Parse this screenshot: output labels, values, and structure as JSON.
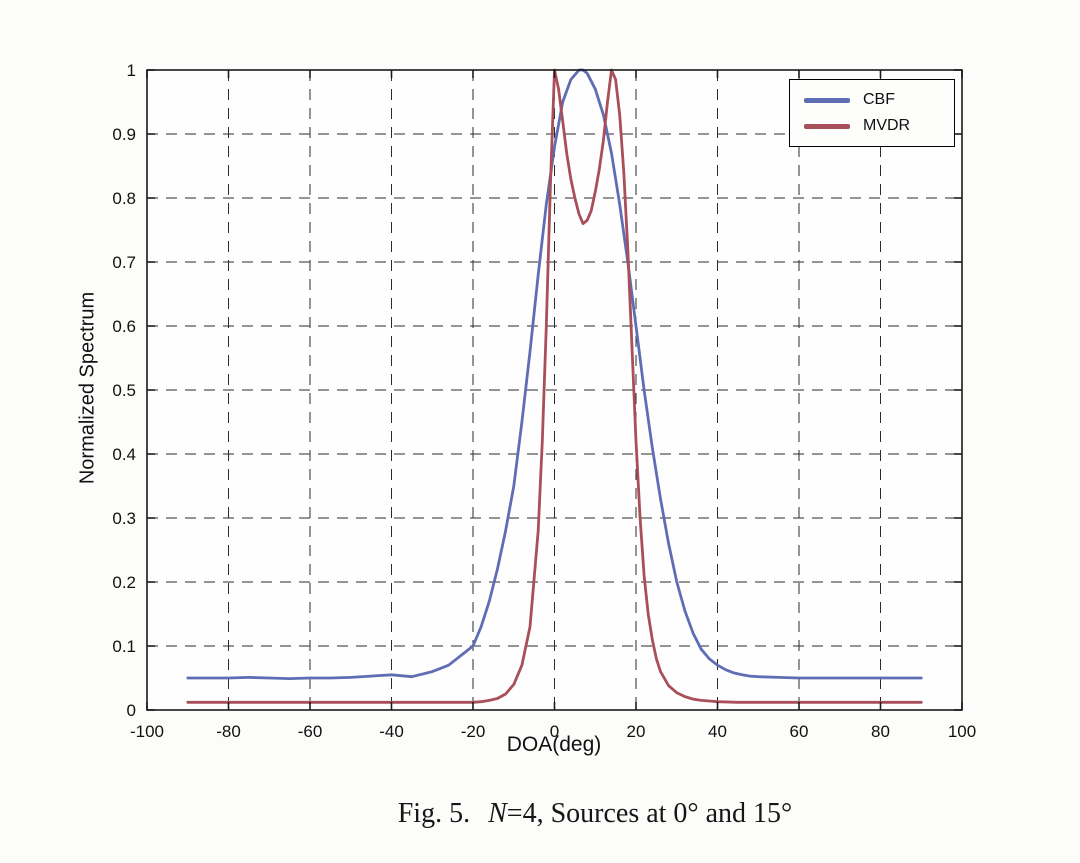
{
  "figure": {
    "caption_fig": "Fig. 5.",
    "caption_n": "N",
    "caption_rest": "=4, Sources at 0° and 15°"
  },
  "chart_data": {
    "type": "line",
    "title": "",
    "xlabel": "DOA(deg)",
    "ylabel": "Normalized Spectrum",
    "xlim": [
      -100,
      100
    ],
    "ylim": [
      0,
      1
    ],
    "grid": "dashed",
    "legend_position": "top-right",
    "xticks": [
      -100,
      -80,
      -60,
      -40,
      -20,
      0,
      20,
      40,
      60,
      80,
      100
    ],
    "xtick_labels": [
      "-100",
      "-80",
      "-60",
      "-40",
      "-20",
      "0",
      "20",
      "40",
      "60",
      "80",
      "100"
    ],
    "yticks": [
      0,
      0.1,
      0.2,
      0.3,
      0.4,
      0.5,
      0.6,
      0.7,
      0.8,
      0.9,
      1
    ],
    "ytick_labels": [
      "0",
      "0.1",
      "0.2",
      "0.3",
      "0.4",
      "0.5",
      "0.6",
      "0.7",
      "0.8",
      "0.9",
      "1"
    ],
    "series": [
      {
        "name": "CBF",
        "color": "#5f6db5",
        "x": [
          -90,
          -85,
          -80,
          -75,
          -70,
          -65,
          -60,
          -55,
          -50,
          -45,
          -40,
          -35,
          -30,
          -28,
          -26,
          -24,
          -22,
          -20,
          -18,
          -16,
          -14,
          -12,
          -10,
          -8,
          -6,
          -4,
          -2,
          0,
          2,
          4,
          6,
          7,
          8,
          10,
          12,
          14,
          16,
          18,
          20,
          22,
          24,
          26,
          28,
          30,
          32,
          34,
          36,
          38,
          40,
          42,
          44,
          46,
          48,
          50,
          55,
          60,
          65,
          70,
          75,
          80,
          85,
          90
        ],
        "y": [
          0.05,
          0.05,
          0.05,
          0.051,
          0.05,
          0.049,
          0.05,
          0.05,
          0.051,
          0.053,
          0.055,
          0.052,
          0.06,
          0.065,
          0.07,
          0.08,
          0.09,
          0.1,
          0.13,
          0.17,
          0.22,
          0.28,
          0.35,
          0.45,
          0.56,
          0.68,
          0.79,
          0.88,
          0.95,
          0.985,
          1.0,
          1.0,
          0.995,
          0.97,
          0.93,
          0.87,
          0.79,
          0.7,
          0.6,
          0.5,
          0.41,
          0.33,
          0.26,
          0.2,
          0.155,
          0.12,
          0.095,
          0.08,
          0.07,
          0.063,
          0.058,
          0.055,
          0.053,
          0.052,
          0.051,
          0.05,
          0.05,
          0.05,
          0.05,
          0.05,
          0.05,
          0.05
        ]
      },
      {
        "name": "MVDR",
        "color": "#a84f59",
        "x": [
          -90,
          -85,
          -80,
          -75,
          -70,
          -65,
          -60,
          -55,
          -50,
          -45,
          -40,
          -35,
          -30,
          -25,
          -20,
          -18,
          -16,
          -14,
          -12,
          -10,
          -8,
          -6,
          -4,
          -3,
          -2,
          -1,
          0,
          1,
          2,
          3,
          4,
          5,
          6,
          7,
          8,
          9,
          10,
          11,
          12,
          13,
          14,
          15,
          16,
          17,
          18,
          19,
          20,
          21,
          22,
          23,
          24,
          25,
          26,
          28,
          30,
          32,
          34,
          36,
          38,
          40,
          45,
          50,
          55,
          60,
          65,
          70,
          75,
          80,
          85,
          90
        ],
        "y": [
          0.012,
          0.012,
          0.012,
          0.012,
          0.012,
          0.012,
          0.012,
          0.012,
          0.012,
          0.012,
          0.012,
          0.012,
          0.012,
          0.012,
          0.012,
          0.013,
          0.015,
          0.018,
          0.025,
          0.04,
          0.07,
          0.13,
          0.28,
          0.42,
          0.6,
          0.82,
          1.0,
          0.97,
          0.92,
          0.87,
          0.83,
          0.8,
          0.775,
          0.76,
          0.765,
          0.78,
          0.81,
          0.845,
          0.89,
          0.95,
          1.0,
          0.985,
          0.93,
          0.84,
          0.72,
          0.57,
          0.42,
          0.3,
          0.21,
          0.15,
          0.11,
          0.08,
          0.06,
          0.038,
          0.027,
          0.021,
          0.017,
          0.015,
          0.014,
          0.013,
          0.012,
          0.012,
          0.012,
          0.012,
          0.012,
          0.012,
          0.012,
          0.012,
          0.012,
          0.012
        ]
      }
    ]
  }
}
